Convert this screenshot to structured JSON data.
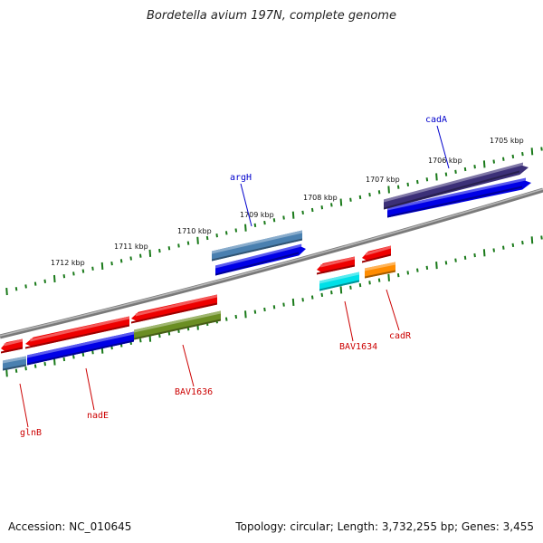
{
  "title": "Bordetella avium 197N, complete genome",
  "footer": {
    "accession": "Accession: NC_010645",
    "topology": "Topology: circular; Length: 3,732,255 bp; Genes: 3,455"
  },
  "colors": {
    "backbone": "#808080",
    "tick": "#1a7a1a",
    "label_forward": "#0000cc",
    "label_reverse": "#cc0000"
  },
  "scale_labels": [
    "1712 kbp",
    "1711 kbp",
    "1710 kbp",
    "1709 kbp",
    "1708 kbp",
    "1707 kbp",
    "1706 kbp",
    "1705 kbp"
  ],
  "gene_labels": [
    {
      "text": "cadA",
      "strand": "forward"
    },
    {
      "text": "argH",
      "strand": "forward"
    },
    {
      "text": "BAV1634",
      "strand": "reverse"
    },
    {
      "text": "cadR",
      "strand": "reverse"
    },
    {
      "text": "BAV1636",
      "strand": "reverse"
    },
    {
      "text": "nadE",
      "strand": "reverse"
    },
    {
      "text": "glnB",
      "strand": "reverse"
    }
  ],
  "features": [
    {
      "name": "cadA-cds",
      "color": "#0000e6",
      "direction": "right"
    },
    {
      "name": "cadA-gene",
      "color": "#3c3078",
      "direction": "right"
    },
    {
      "name": "argH-cds",
      "color": "#0000e6",
      "direction": "right"
    },
    {
      "name": "argH-gene",
      "color": "#4a80b0",
      "direction": "none"
    },
    {
      "name": "BAV1634-gene",
      "color": "#ee0000",
      "direction": "left"
    },
    {
      "name": "BAV1634-cds",
      "color": "#00e0e8",
      "direction": "none"
    },
    {
      "name": "cadR-gene",
      "color": "#ee0000",
      "direction": "left"
    },
    {
      "name": "cadR-cds",
      "color": "#ff8c00",
      "direction": "none"
    },
    {
      "name": "BAV1636-gene",
      "color": "#ee0000",
      "direction": "left"
    },
    {
      "name": "BAV1636-cds",
      "color": "#6b8e23",
      "direction": "none"
    },
    {
      "name": "nadE-gene",
      "color": "#ee0000",
      "direction": "left"
    },
    {
      "name": "nadE-cds",
      "color": "#0000e6",
      "direction": "none"
    },
    {
      "name": "glnB-gene",
      "color": "#ee0000",
      "direction": "left"
    },
    {
      "name": "glnB-cds",
      "color": "#4a80b0",
      "direction": "none"
    }
  ]
}
